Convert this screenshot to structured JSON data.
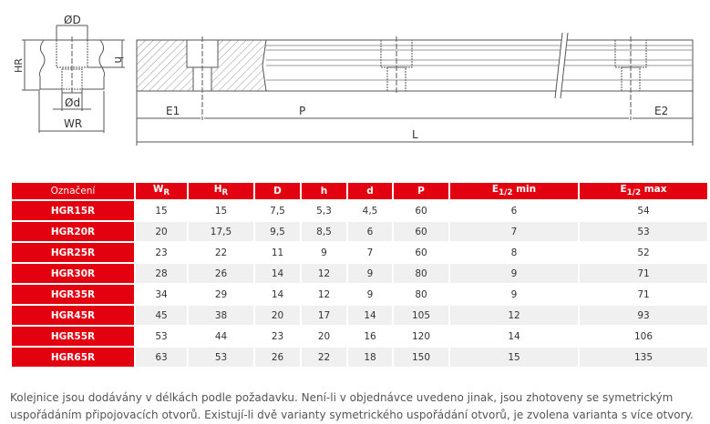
{
  "drawing": {
    "labels": {
      "D": "ØD",
      "h": "h",
      "HR": "HR",
      "d": "Ød",
      "WR": "WR",
      "E1": "E1",
      "P": "P",
      "E2": "E2",
      "L": "L"
    }
  },
  "table": {
    "headers": [
      "Označení",
      "WR",
      "HR",
      "D",
      "h",
      "d",
      "P",
      "E1/2 min",
      "E1/2 max"
    ],
    "rows": [
      [
        "HGR15R",
        "15",
        "15",
        "7,5",
        "5,3",
        "4,5",
        "60",
        "6",
        "54"
      ],
      [
        "HGR20R",
        "20",
        "17,5",
        "9,5",
        "8,5",
        "6",
        "60",
        "7",
        "53"
      ],
      [
        "HGR25R",
        "23",
        "22",
        "11",
        "9",
        "7",
        "60",
        "8",
        "52"
      ],
      [
        "HGR30R",
        "28",
        "26",
        "14",
        "12",
        "9",
        "80",
        "9",
        "71"
      ],
      [
        "HGR35R",
        "34",
        "29",
        "14",
        "12",
        "9",
        "80",
        "9",
        "71"
      ],
      [
        "HGR45R",
        "45",
        "38",
        "20",
        "17",
        "14",
        "105",
        "12",
        "93"
      ],
      [
        "HGR55R",
        "53",
        "44",
        "23",
        "20",
        "16",
        "120",
        "14",
        "106"
      ],
      [
        "HGR65R",
        "63",
        "53",
        "26",
        "22",
        "18",
        "150",
        "15",
        "135"
      ]
    ]
  },
  "note": "Kolejnice jsou dodávány v délkách podle požadavku. Není-li v objednávce uvedeno jinak, jsou zhotoveny se symetrickým uspořádáním připojovacích otvorů. Existují-li dvě varianty symetrického uspořádání otvorů, je zvolena varianta s více otvory."
}
